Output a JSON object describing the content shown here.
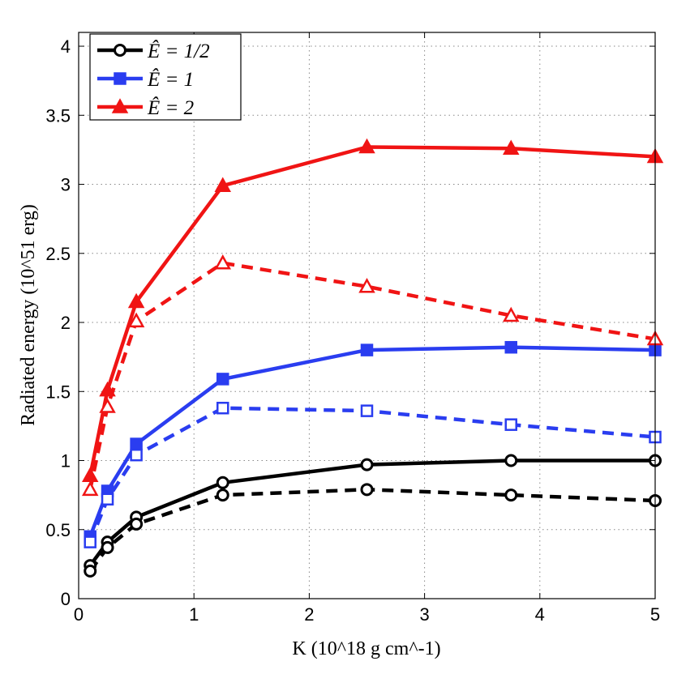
{
  "chart_data": {
    "type": "line",
    "title": "",
    "xlabel": "K (10^18 g cm^-1)",
    "ylabel": "Radiated energy (10^51 erg)",
    "xlim": [
      0,
      5
    ],
    "ylim": [
      0,
      4.1
    ],
    "xticks": [
      "0",
      "1",
      "2",
      "3",
      "4",
      "5"
    ],
    "yticks": [
      "0",
      "0.5",
      "1",
      "1.5",
      "2",
      "2.5",
      "3",
      "3.5",
      "4"
    ],
    "grid": true,
    "legend_position": "top-left",
    "x": [
      0.1,
      0.25,
      0.5,
      1.25,
      2.5,
      3.75,
      5.0
    ],
    "series": [
      {
        "name": "Ê = 1/2",
        "color": "#000000",
        "marker": "circle",
        "linestyle": "solid",
        "values": [
          0.24,
          0.41,
          0.59,
          0.84,
          0.97,
          1.0,
          1.0
        ]
      },
      {
        "name": "Ê = 1/2",
        "color": "#000000",
        "marker": "circle",
        "linestyle": "dashed",
        "values": [
          0.2,
          0.37,
          0.54,
          0.75,
          0.79,
          0.75,
          0.71
        ]
      },
      {
        "name": "Ê = 1",
        "color": "#2a3df0",
        "marker": "square",
        "linestyle": "solid",
        "values": [
          0.45,
          0.78,
          1.12,
          1.59,
          1.8,
          1.82,
          1.8
        ]
      },
      {
        "name": "Ê = 1",
        "color": "#2a3df0",
        "marker": "square",
        "linestyle": "dashed",
        "values": [
          0.41,
          0.72,
          1.04,
          1.38,
          1.36,
          1.26,
          1.17
        ]
      },
      {
        "name": "Ê = 2",
        "color": "#f01414",
        "marker": "triangle",
        "linestyle": "solid",
        "values": [
          0.89,
          1.51,
          2.15,
          2.99,
          3.27,
          3.26,
          3.2
        ]
      },
      {
        "name": "Ê = 2",
        "color": "#f01414",
        "marker": "triangle",
        "linestyle": "dashed",
        "values": [
          0.79,
          1.39,
          2.01,
          2.43,
          2.26,
          2.05,
          1.88
        ]
      }
    ],
    "legend": [
      {
        "label": "Ê = 1/2",
        "color": "#000000",
        "marker": "circle"
      },
      {
        "label": "Ê = 1",
        "color": "#2a3df0",
        "marker": "square"
      },
      {
        "label": "Ê = 2",
        "color": "#f01414",
        "marker": "triangle"
      }
    ]
  }
}
